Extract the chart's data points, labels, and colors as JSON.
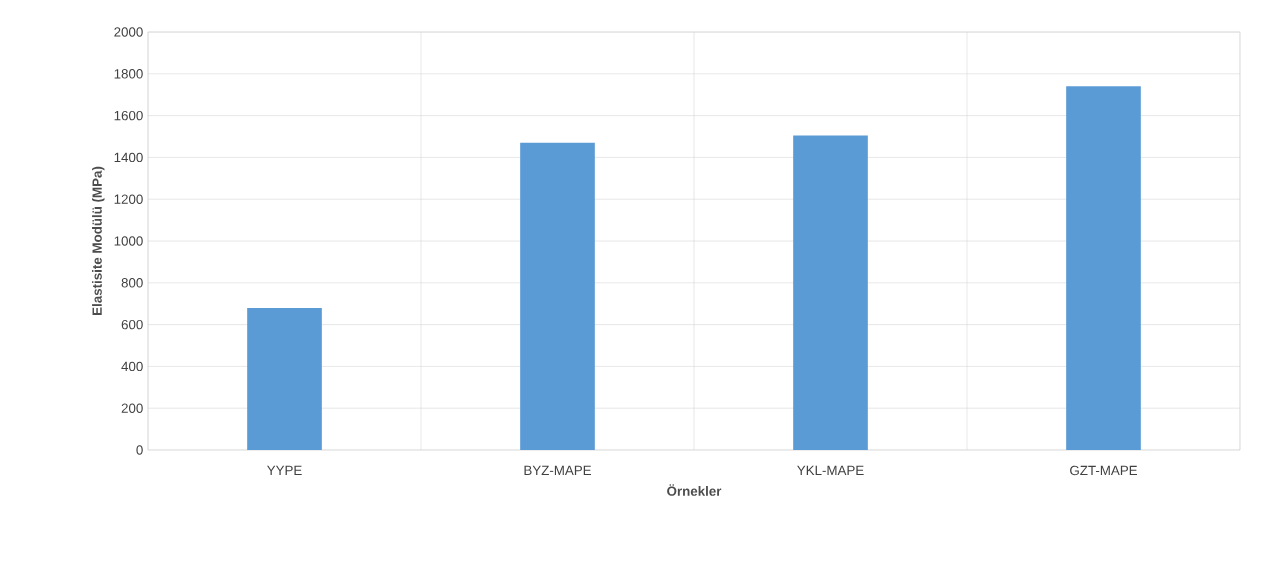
{
  "chart_data": {
    "type": "bar",
    "xlabel": "Örnekler",
    "ylabel": "Elastisite Modülü (MPa)",
    "categories": [
      "YYPE",
      "BYZ-MAPE",
      "YKL-MAPE",
      "GZT-MAPE"
    ],
    "values": [
      680,
      1470,
      1505,
      1740
    ],
    "color": "#5b9bd5",
    "ylim": [
      0,
      2000
    ],
    "yticks": [
      0,
      200,
      400,
      600,
      800,
      1000,
      1200,
      1400,
      1600,
      1800,
      2000
    ],
    "grid": true
  }
}
